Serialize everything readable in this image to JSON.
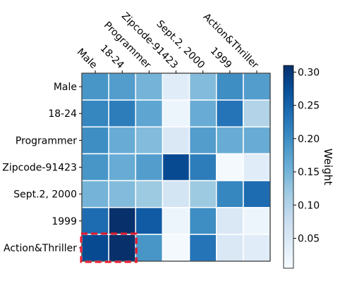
{
  "chart_data": {
    "type": "heatmap",
    "title": "",
    "x_tick_labels": [
      "Male",
      "18-24",
      "Programmer",
      "Zipcode-91423",
      "Sept.2, 2000",
      "1999",
      "Action&Thriller"
    ],
    "y_tick_labels": [
      "Male",
      "18-24",
      "Programmer",
      "Zipcode-91423",
      "Sept.2, 2000",
      "1999",
      "Action&Thriller"
    ],
    "values": [
      [
        0.19,
        0.18,
        0.15,
        0.04,
        0.14,
        0.2,
        0.18
      ],
      [
        0.21,
        0.22,
        0.17,
        0.02,
        0.16,
        0.23,
        0.1
      ],
      [
        0.2,
        0.16,
        0.14,
        0.05,
        0.18,
        0.16,
        0.16
      ],
      [
        0.19,
        0.16,
        0.18,
        0.28,
        0.22,
        0.01,
        0.04
      ],
      [
        0.15,
        0.14,
        0.12,
        0.06,
        0.12,
        0.21,
        0.24
      ],
      [
        0.24,
        0.32,
        0.26,
        0.02,
        0.2,
        0.05,
        0.02
      ],
      [
        0.28,
        0.31,
        0.19,
        0.01,
        0.23,
        0.05,
        0.04
      ]
    ],
    "colorbar": {
      "label": "Weight",
      "ticks": [
        "0.05",
        "0.10",
        "0.15",
        "0.20",
        "0.25",
        "0.30"
      ],
      "range": [
        0.005,
        0.31
      ],
      "colormap": "Blues"
    },
    "highlight": {
      "rows": [
        6,
        6
      ],
      "cols": [
        0,
        1
      ],
      "style": "dashed",
      "color": "#e8192c"
    }
  }
}
